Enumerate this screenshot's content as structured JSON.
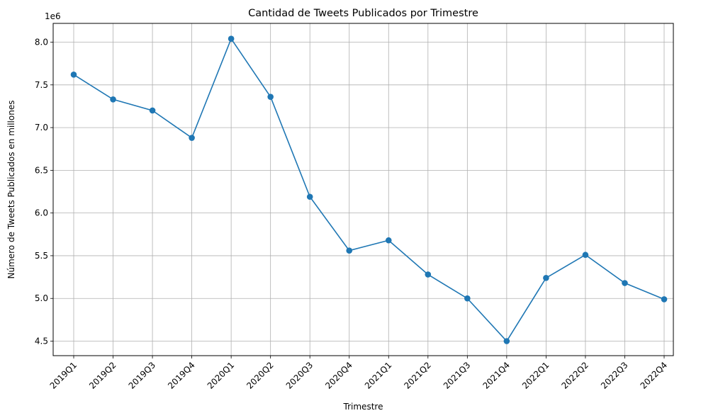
{
  "chart_data": {
    "type": "line",
    "title": "Cantidad de Tweets Publicados por Trimestre",
    "xlabel": "Trimestre",
    "ylabel": "Número de Tweets Publicados en millones",
    "offset_label": "1e6",
    "categories": [
      "2019Q1",
      "2019Q2",
      "2019Q3",
      "2019Q4",
      "2020Q1",
      "2020Q2",
      "2020Q3",
      "2020Q4",
      "2021Q1",
      "2021Q2",
      "2021Q3",
      "2021Q4",
      "2022Q1",
      "2022Q2",
      "2022Q3",
      "2022Q4"
    ],
    "series": [
      {
        "values": [
          7.62,
          7.33,
          7.2,
          6.88,
          8.04,
          7.36,
          6.19,
          5.56,
          5.68,
          5.28,
          5.0,
          4.5,
          5.24,
          5.51,
          5.18,
          4.99
        ]
      }
    ],
    "yticks": [
      "4.5",
      "5.0",
      "5.5",
      "6.0",
      "6.5",
      "7.0",
      "7.5",
      "8.0"
    ],
    "ylim": [
      4.33,
      8.22
    ],
    "grid": true,
    "line_color": "#1f77b4",
    "marker": "circle"
  }
}
